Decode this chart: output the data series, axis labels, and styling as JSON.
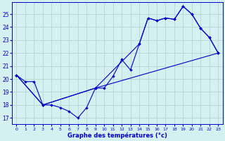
{
  "xlabel": "Graphe des températures (°c)",
  "background_color": "#d4f0f0",
  "grid_color": "#b0d0d0",
  "line_color": "#0000cc",
  "xlim": [
    -0.5,
    23.5
  ],
  "ylim": [
    16.5,
    25.9
  ],
  "xticks": [
    0,
    1,
    2,
    3,
    4,
    5,
    6,
    7,
    8,
    9,
    10,
    11,
    12,
    13,
    14,
    15,
    16,
    17,
    18,
    19,
    20,
    21,
    22,
    23
  ],
  "yticks": [
    17,
    18,
    19,
    20,
    21,
    22,
    23,
    24,
    25
  ],
  "series1_x": [
    0,
    1,
    2,
    3,
    4,
    5,
    6,
    7,
    8,
    9,
    10,
    11,
    12,
    13,
    14,
    15,
    16,
    17,
    18,
    19,
    20,
    21,
    22,
    23
  ],
  "series1_y": [
    20.3,
    19.8,
    19.8,
    18.0,
    18.0,
    17.8,
    17.5,
    17.0,
    17.8,
    19.3,
    19.3,
    20.2,
    21.5,
    20.7,
    22.7,
    24.7,
    24.5,
    24.7,
    24.6,
    25.6,
    25.0,
    23.9,
    23.2,
    22.0
  ],
  "series2_x": [
    0,
    3,
    9,
    14,
    15,
    16,
    17,
    18,
    19,
    20,
    21,
    22,
    23
  ],
  "series2_y": [
    20.3,
    18.0,
    19.3,
    22.7,
    24.7,
    24.5,
    24.7,
    24.6,
    25.6,
    25.0,
    23.9,
    23.2,
    22.0
  ],
  "series3_x": [
    0,
    3,
    9,
    23
  ],
  "series3_y": [
    20.3,
    18.0,
    19.3,
    22.0
  ]
}
